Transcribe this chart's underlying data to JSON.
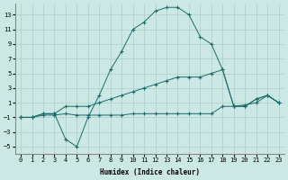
{
  "xlabel": "Humidex (Indice chaleur)",
  "x_ticks": [
    0,
    1,
    2,
    3,
    4,
    5,
    6,
    7,
    8,
    9,
    10,
    11,
    12,
    13,
    14,
    15,
    16,
    17,
    18,
    19,
    20,
    21,
    22,
    23
  ],
  "y_ticks": [
    -5,
    -3,
    -1,
    1,
    3,
    5,
    7,
    9,
    11,
    13
  ],
  "ylim": [
    -6,
    14.5
  ],
  "xlim": [
    -0.5,
    23.5
  ],
  "background_color": "#cce8e4",
  "grid_color": "#aaceca",
  "line_color": "#1a6b6b",
  "line1_x": [
    0,
    1,
    2,
    3,
    4,
    5,
    6,
    7,
    8,
    9,
    10,
    11,
    12,
    13,
    14,
    15,
    16,
    17,
    18,
    19,
    20,
    21,
    22,
    23
  ],
  "line1_y": [
    -1,
    -1,
    -0.5,
    -0.5,
    -4,
    -5,
    -1,
    2,
    5.5,
    8,
    11,
    12,
    13.5,
    14,
    14,
    13,
    10,
    9,
    5.5,
    0.5,
    0.5,
    1.5,
    2,
    1
  ],
  "line2_x": [
    0,
    1,
    2,
    3,
    4,
    5,
    6,
    7,
    8,
    9,
    10,
    11,
    12,
    13,
    14,
    15,
    16,
    17,
    18,
    19,
    20,
    21,
    22,
    23
  ],
  "line2_y": [
    -1,
    -1,
    -0.5,
    -0.5,
    0.5,
    0.5,
    0.5,
    1,
    1.5,
    2,
    2.5,
    3,
    3.5,
    4,
    4.5,
    4.5,
    4.5,
    5,
    5.5,
    0.5,
    0.5,
    1.5,
    2,
    1
  ],
  "line3_x": [
    0,
    1,
    2,
    3,
    4,
    5,
    6,
    7,
    8,
    9,
    10,
    11,
    12,
    13,
    14,
    15,
    16,
    17,
    18,
    19,
    20,
    21,
    22,
    23
  ],
  "line3_y": [
    -1,
    -1,
    -0.7,
    -0.7,
    -0.5,
    -0.7,
    -0.7,
    -0.7,
    -0.7,
    -0.7,
    -0.5,
    -0.5,
    -0.5,
    -0.5,
    -0.5,
    -0.5,
    -0.5,
    -0.5,
    0.5,
    0.5,
    0.7,
    1,
    2,
    1
  ]
}
